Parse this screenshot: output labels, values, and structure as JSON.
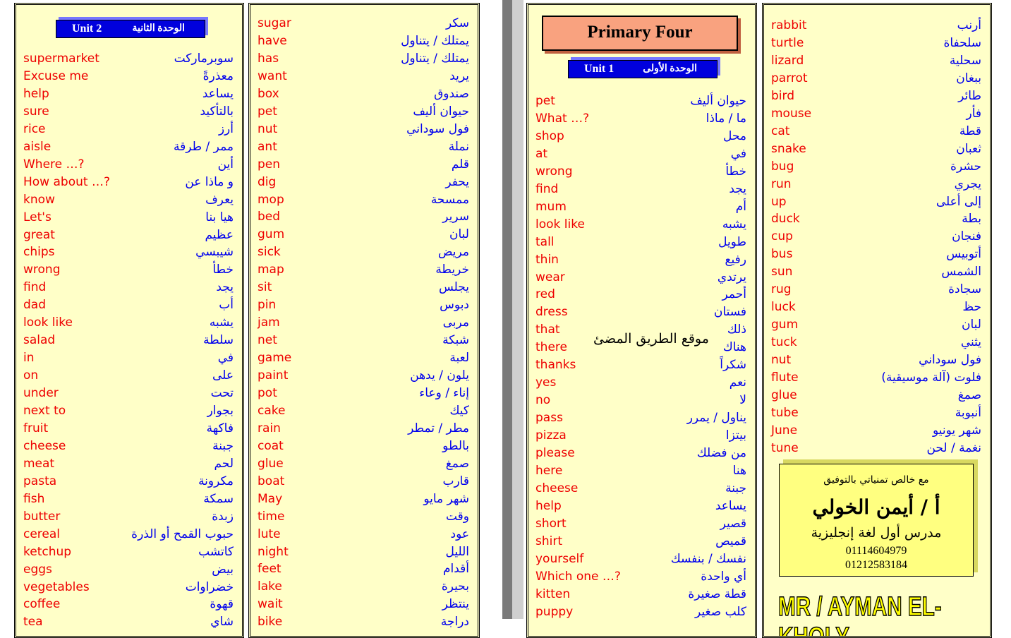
{
  "title": "Primary Four",
  "watermark": "موقع الطريق المضئ",
  "banner": "MR / AYMAN EL-KHOLY",
  "signature": {
    "wish": "مع خالص تمنياتي بالتوفيق",
    "name": "أ / أيمن الخولي",
    "role": "مدرس أول لغة إنجليزية",
    "phones": [
      "01114604979",
      "01212583184"
    ]
  },
  "panels": [
    {
      "unit": "Unit 2",
      "unit_ar": "الوحدة الثانية",
      "rows": [
        [
          "supermarket",
          "سوبرماركت"
        ],
        [
          "Excuse me",
          "معذرةً"
        ],
        [
          "help",
          "يساعد"
        ],
        [
          "sure",
          "بالتأكيد"
        ],
        [
          "rice",
          "أرز"
        ],
        [
          "aisle",
          "ممر / طرقة"
        ],
        [
          "Where …?",
          "أين"
        ],
        [
          "How about …?",
          "و ماذا عن"
        ],
        [
          "know",
          "يعرف"
        ],
        [
          "Let's",
          "هيا بنا"
        ],
        [
          "great",
          "عظيم"
        ],
        [
          "chips",
          "شيبسي"
        ],
        [
          "wrong",
          "خطأ"
        ],
        [
          "find",
          "يجد"
        ],
        [
          "dad",
          "أب"
        ],
        [
          "look like",
          "يشبه"
        ],
        [
          "salad",
          "سلطة"
        ],
        [
          "in",
          "في"
        ],
        [
          "on",
          "على"
        ],
        [
          "under",
          "تحت"
        ],
        [
          "next to",
          "بجوار"
        ],
        [
          "fruit",
          "فاكهة"
        ],
        [
          "cheese",
          "جبنة"
        ],
        [
          "meat",
          "لحم"
        ],
        [
          "pasta",
          "مكرونة"
        ],
        [
          "fish",
          "سمكة"
        ],
        [
          "butter",
          "زبدة"
        ],
        [
          "cereal",
          "حبوب القمح أو الذرة"
        ],
        [
          "ketchup",
          "كاتشب"
        ],
        [
          "eggs",
          "بيض"
        ],
        [
          "vegetables",
          "خضراوات"
        ],
        [
          "coffee",
          "قهوة"
        ],
        [
          "tea",
          "شاي"
        ]
      ]
    },
    {
      "rows": [
        [
          "sugar",
          "سكر"
        ],
        [
          "have",
          "يمتلك / يتناول"
        ],
        [
          "has",
          "يمتلك / يتناول"
        ],
        [
          "want",
          "يريد"
        ],
        [
          "box",
          "صندوق"
        ],
        [
          "pet",
          "حيوان أليف"
        ],
        [
          "nut",
          "فول سوداني"
        ],
        [
          "ant",
          "نملة"
        ],
        [
          "pen",
          "قلم"
        ],
        [
          "dig",
          "يحفر"
        ],
        [
          "mop",
          "ممسحة"
        ],
        [
          "bed",
          "سرير"
        ],
        [
          "gum",
          "لبان"
        ],
        [
          "sick",
          "مريض"
        ],
        [
          "map",
          "خريطة"
        ],
        [
          "sit",
          "يجلس"
        ],
        [
          "pin",
          "دبوس"
        ],
        [
          "jam",
          "مربى"
        ],
        [
          "net",
          "شبكة"
        ],
        [
          "game",
          "لعبة"
        ],
        [
          "paint",
          "يلون / يدهن"
        ],
        [
          "pot",
          "إناء / وعاء"
        ],
        [
          "cake",
          "كيك"
        ],
        [
          "rain",
          "مطر / تمطر"
        ],
        [
          "coat",
          "بالطو"
        ],
        [
          "glue",
          "صمغ"
        ],
        [
          "boat",
          "قارب"
        ],
        [
          "May",
          "شهر مايو"
        ],
        [
          "time",
          "وقت"
        ],
        [
          "lute",
          "عود"
        ],
        [
          "night",
          "الليل"
        ],
        [
          "feet",
          "أقدام"
        ],
        [
          "lake",
          "بحيرة"
        ],
        [
          "wait",
          "ينتظر"
        ],
        [
          "bike",
          "دراجة"
        ]
      ]
    },
    {
      "unit": "Unit 1",
      "unit_ar": "الوحدة الأولى",
      "rows": [
        [
          "pet",
          "حيوان أليف"
        ],
        [
          "What …?",
          "ما / ماذا"
        ],
        [
          "shop",
          "محل"
        ],
        [
          "at",
          "في"
        ],
        [
          "wrong",
          "خطأ"
        ],
        [
          "find",
          "يجد"
        ],
        [
          "mum",
          "أم"
        ],
        [
          "look like",
          "يشبه"
        ],
        [
          "tall",
          "طويل"
        ],
        [
          "thin",
          "رفيع"
        ],
        [
          "wear",
          "يرتدي"
        ],
        [
          "red",
          "أحمر"
        ],
        [
          "dress",
          "فستان"
        ],
        [
          "that",
          "ذلك"
        ],
        [
          "there",
          "هناك"
        ],
        [
          "thanks",
          "شكراً"
        ],
        [
          "yes",
          "نعم"
        ],
        [
          "no",
          "لا"
        ],
        [
          "pass",
          "يناول / يمرر"
        ],
        [
          "pizza",
          "بيتزا"
        ],
        [
          "please",
          "من فضلك"
        ],
        [
          "here",
          "هنا"
        ],
        [
          "cheese",
          "جبنة"
        ],
        [
          "help",
          "يساعد"
        ],
        [
          "short",
          "قصير"
        ],
        [
          "shirt",
          "قميص"
        ],
        [
          "yourself",
          "نفسك / بنفسك"
        ],
        [
          "Which one …?",
          "أي واحدة"
        ],
        [
          "kitten",
          "قطة صغيرة"
        ],
        [
          "puppy",
          "كلب صغير"
        ]
      ]
    },
    {
      "rows": [
        [
          "rabbit",
          "أرنب"
        ],
        [
          "turtle",
          "سلحفاة"
        ],
        [
          "lizard",
          "سحلية"
        ],
        [
          "parrot",
          "ببغان"
        ],
        [
          "bird",
          "طائر"
        ],
        [
          "mouse",
          "فأر"
        ],
        [
          "cat",
          "قطة"
        ],
        [
          "snake",
          "ثعبان"
        ],
        [
          "bug",
          "حشرة"
        ],
        [
          "run",
          "يجري"
        ],
        [
          "up",
          "إلى أعلى"
        ],
        [
          "duck",
          "بطة"
        ],
        [
          "cup",
          "فنجان"
        ],
        [
          "bus",
          "أتوبيس"
        ],
        [
          "sun",
          "الشمس"
        ],
        [
          "rug",
          "سجادة"
        ],
        [
          "luck",
          "حظ"
        ],
        [
          "gum",
          "لبان"
        ],
        [
          "tuck",
          "يثني"
        ],
        [
          "nut",
          "فول سوداني"
        ],
        [
          "flute",
          "فلوت (آلة موسيقية)"
        ],
        [
          "glue",
          "صمغ"
        ],
        [
          "tube",
          "أنبوبة"
        ],
        [
          "June",
          "شهر يونيو"
        ],
        [
          "tune",
          "نغمة / لحن"
        ]
      ]
    }
  ]
}
